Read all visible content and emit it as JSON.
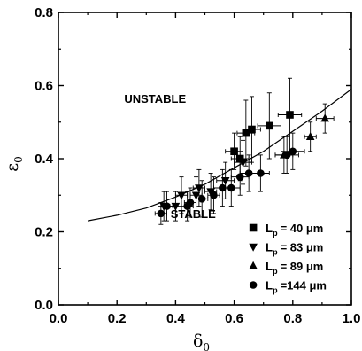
{
  "chart_data": {
    "type": "scatter",
    "xlabel": "δ",
    "xlabel_sub": "0",
    "ylabel": "ε",
    "ylabel_sub": "0",
    "xlim": [
      0.0,
      1.0
    ],
    "ylim": [
      0.0,
      0.8
    ],
    "xticks": [
      "0.0",
      "0.2",
      "0.4",
      "0.6",
      "0.8",
      "1.0"
    ],
    "yticks": [
      "0.0",
      "0.2",
      "0.4",
      "0.6",
      "0.8"
    ],
    "grid": false,
    "legend_position": "bottom-right",
    "annotations": [
      {
        "text": "UNSTABLE",
        "x": 0.33,
        "y": 0.565
      },
      {
        "text": "STABLE",
        "x": 0.46,
        "y": 0.25
      }
    ],
    "series": [
      {
        "name_main": "L",
        "name_sub": "p",
        "name_rest": "= 40 μm",
        "marker": "square",
        "points": [
          {
            "x": 0.6,
            "y": 0.42,
            "xerr": 0.03,
            "yerr": 0.05
          },
          {
            "x": 0.62,
            "y": 0.4,
            "xerr": 0.03,
            "yerr": 0.06
          },
          {
            "x": 0.64,
            "y": 0.47,
            "xerr": 0.03,
            "yerr": 0.09
          },
          {
            "x": 0.66,
            "y": 0.48,
            "xerr": 0.03,
            "yerr": 0.09
          },
          {
            "x": 0.72,
            "y": 0.49,
            "xerr": 0.04,
            "yerr": 0.09
          },
          {
            "x": 0.79,
            "y": 0.52,
            "xerr": 0.04,
            "yerr": 0.1
          }
        ]
      },
      {
        "name_main": "L",
        "name_sub": "p",
        "name_rest": "= 83 μm",
        "marker": "triangle-down",
        "points": [
          {
            "x": 0.36,
            "y": 0.27,
            "xerr": 0.02,
            "yerr": 0.04
          },
          {
            "x": 0.4,
            "y": 0.27,
            "xerr": 0.02,
            "yerr": 0.04
          },
          {
            "x": 0.42,
            "y": 0.3,
            "xerr": 0.02,
            "yerr": 0.05
          },
          {
            "x": 0.47,
            "y": 0.3,
            "xerr": 0.02,
            "yerr": 0.05
          },
          {
            "x": 0.48,
            "y": 0.32,
            "xerr": 0.02,
            "yerr": 0.05
          },
          {
            "x": 0.52,
            "y": 0.31,
            "xerr": 0.02,
            "yerr": 0.05
          },
          {
            "x": 0.57,
            "y": 0.34,
            "xerr": 0.03,
            "yerr": 0.05
          },
          {
            "x": 0.63,
            "y": 0.39,
            "xerr": 0.03,
            "yerr": 0.06
          }
        ]
      },
      {
        "name_main": "L",
        "name_sub": "p",
        "name_rest": "= 89 μm",
        "marker": "triangle-up",
        "points": [
          {
            "x": 0.77,
            "y": 0.41,
            "xerr": 0.03,
            "yerr": 0.05
          },
          {
            "x": 0.86,
            "y": 0.46,
            "xerr": 0.02,
            "yerr": 0.04
          },
          {
            "x": 0.91,
            "y": 0.51,
            "xerr": 0.03,
            "yerr": 0.04
          }
        ]
      },
      {
        "name_main": "L",
        "name_sub": "p",
        "name_rest": "=144 μm",
        "marker": "circle",
        "points": [
          {
            "x": 0.35,
            "y": 0.25,
            "xerr": 0.02,
            "yerr": 0.03
          },
          {
            "x": 0.37,
            "y": 0.27,
            "xerr": 0.02,
            "yerr": 0.04
          },
          {
            "x": 0.44,
            "y": 0.27,
            "xerr": 0.02,
            "yerr": 0.04
          },
          {
            "x": 0.45,
            "y": 0.28,
            "xerr": 0.02,
            "yerr": 0.04
          },
          {
            "x": 0.49,
            "y": 0.29,
            "xerr": 0.02,
            "yerr": 0.05
          },
          {
            "x": 0.53,
            "y": 0.3,
            "xerr": 0.02,
            "yerr": 0.05
          },
          {
            "x": 0.56,
            "y": 0.32,
            "xerr": 0.03,
            "yerr": 0.05
          },
          {
            "x": 0.59,
            "y": 0.32,
            "xerr": 0.03,
            "yerr": 0.05
          },
          {
            "x": 0.62,
            "y": 0.35,
            "xerr": 0.03,
            "yerr": 0.05
          },
          {
            "x": 0.65,
            "y": 0.36,
            "xerr": 0.03,
            "yerr": 0.05
          },
          {
            "x": 0.69,
            "y": 0.36,
            "xerr": 0.03,
            "yerr": 0.05
          },
          {
            "x": 0.78,
            "y": 0.41,
            "xerr": 0.04,
            "yerr": 0.05
          },
          {
            "x": 0.8,
            "y": 0.42,
            "xerr": 0.04,
            "yerr": 0.05
          }
        ]
      },
      {
        "marker": "line",
        "points": [
          {
            "x": 0.1,
            "y": 0.23
          },
          {
            "x": 0.2,
            "y": 0.245
          },
          {
            "x": 0.3,
            "y": 0.265
          },
          {
            "x": 0.4,
            "y": 0.295
          },
          {
            "x": 0.5,
            "y": 0.33
          },
          {
            "x": 0.6,
            "y": 0.375
          },
          {
            "x": 0.7,
            "y": 0.42
          },
          {
            "x": 0.8,
            "y": 0.475
          },
          {
            "x": 0.9,
            "y": 0.53
          },
          {
            "x": 1.0,
            "y": 0.59
          }
        ]
      }
    ]
  }
}
